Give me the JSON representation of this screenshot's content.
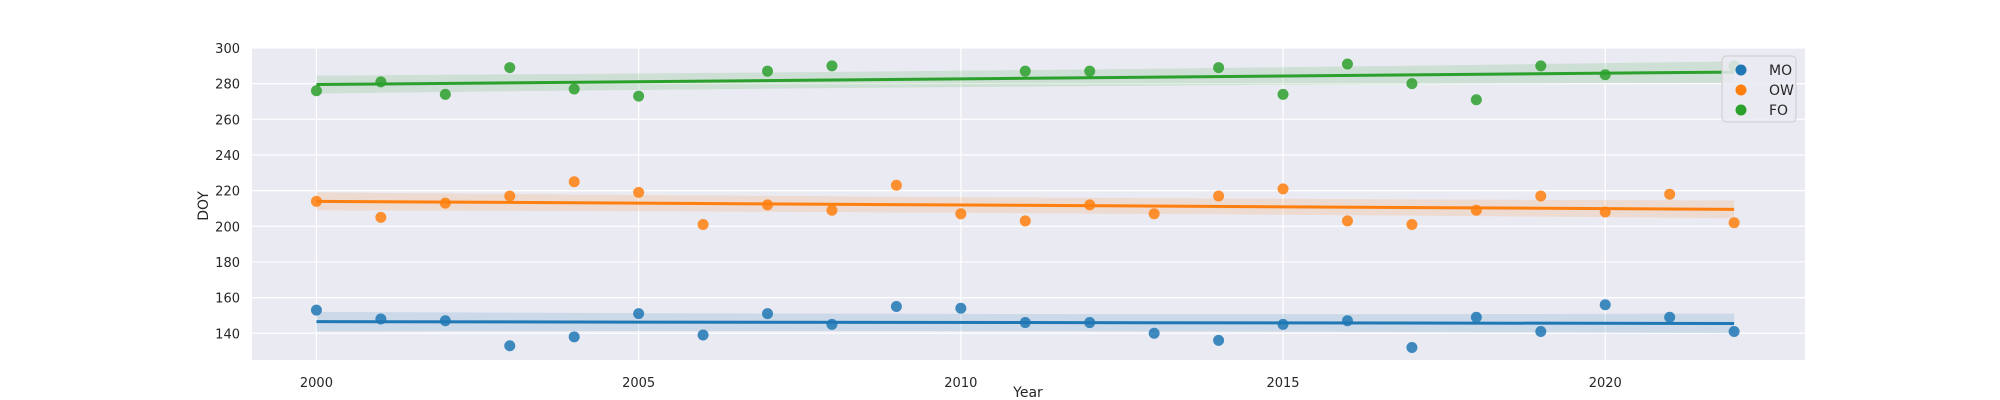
{
  "chart_data": {
    "type": "scatter",
    "title": "",
    "xlabel": "Year",
    "ylabel": "DOY",
    "xlim": [
      1999,
      2023.1
    ],
    "ylim": [
      125,
      300
    ],
    "xticks": [
      2000,
      2005,
      2010,
      2015,
      2020
    ],
    "yticks": [
      140,
      160,
      180,
      200,
      220,
      240,
      260,
      280,
      300
    ],
    "grid": true,
    "legend_position": "top-right",
    "x": [
      2000,
      2001,
      2002,
      2003,
      2004,
      2005,
      2006,
      2007,
      2008,
      2009,
      2010,
      2011,
      2012,
      2013,
      2014,
      2015,
      2016,
      2017,
      2018,
      2019,
      2020,
      2021,
      2022
    ],
    "series": [
      {
        "name": "MO",
        "color": "#1f77b4",
        "values": [
          153,
          148,
          147,
          133,
          138,
          151,
          139,
          151,
          145,
          155,
          154,
          146,
          146,
          140,
          136,
          145,
          147,
          132,
          149,
          141,
          156,
          149,
          141
        ],
        "trend": [
          146.5,
          145.5
        ],
        "ci_halfwidth": [
          5.5,
          5.5
        ]
      },
      {
        "name": "OW",
        "color": "#ff7f0e",
        "values": [
          214,
          205,
          213,
          217,
          225,
          219,
          201,
          212,
          209,
          223,
          null,
          203,
          212,
          207,
          217,
          221,
          203,
          201,
          209,
          217,
          208,
          218,
          202
        ],
        "trend": [
          214,
          209.5
        ],
        "ci_halfwidth": [
          5,
          5
        ]
      },
      {
        "name": "FO",
        "color": "#2ca02c",
        "values": [
          276,
          281,
          274,
          289,
          277,
          273,
          null,
          287,
          290,
          null,
          null,
          287,
          287,
          null,
          289,
          274,
          291,
          280,
          271,
          290,
          285,
          null,
          290
        ],
        "trend": [
          279.5,
          286.5
        ],
        "ci_halfwidth": [
          5,
          6
        ]
      }
    ],
    "extra_points": [
      {
        "series": "OW",
        "x": 2010,
        "y": 207
      }
    ]
  }
}
